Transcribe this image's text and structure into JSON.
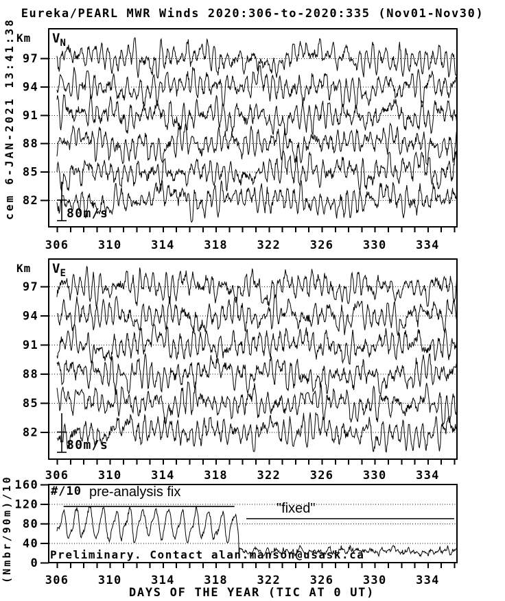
{
  "header": {
    "title": "Eureka/PEARL MWR Winds 2020:306-to-2020:335 (Nov01-Nov30)",
    "left_stamp": "cem 6-JAN-2021 13:41:38"
  },
  "x_axis_title": "DAYS OF THE YEAR (TIC AT 0 UT)",
  "chart_data": [
    {
      "type": "line",
      "id": "vn",
      "label_main": "V",
      "label_sub": "N",
      "ylabel": "Km",
      "altitudes_km": [
        97,
        94,
        91,
        88,
        85,
        82
      ],
      "x_ticks": [
        306,
        310,
        314,
        318,
        322,
        326,
        330,
        334
      ],
      "x_minor_step_days": 1,
      "x_range_days": [
        305.4,
        336.25
      ],
      "data_span_days": [
        306.0,
        336.2
      ],
      "grid": "dotted-horizontal-per-altitude",
      "scale_bar": {
        "label": "80m/s",
        "mps": 80
      },
      "series_model": {
        "synthetic": true,
        "note": "dense noisy hourly wind traces, one per altitude, oscillating about each altitude baseline",
        "samples_per_day": 24,
        "seed": 101,
        "mean_wind_mps": 0,
        "semidiurnal_amp_mps": 16,
        "semidiurnal_amp_variability_mps": 9,
        "diurnal_amp_mps": 7,
        "slow_drift_mps": 9,
        "fast_noise_mps": 8,
        "typical_peak_mps": 45
      }
    },
    {
      "type": "line",
      "id": "ve",
      "label_main": "V",
      "label_sub": "E",
      "ylabel": "Km",
      "altitudes_km": [
        97,
        94,
        91,
        88,
        85,
        82
      ],
      "x_ticks": [
        306,
        310,
        314,
        318,
        322,
        326,
        330,
        334
      ],
      "x_minor_step_days": 1,
      "x_range_days": [
        305.4,
        336.25
      ],
      "data_span_days": [
        306.0,
        336.2
      ],
      "grid": "dotted-horizontal-per-altitude",
      "scale_bar": {
        "label": "80m/s",
        "mps": 80
      },
      "series_model": {
        "synthetic": true,
        "note": "dense noisy hourly wind traces, one per altitude, oscillating about each altitude baseline",
        "samples_per_day": 24,
        "seed": 202,
        "mean_wind_mps": 0,
        "semidiurnal_amp_mps": 16,
        "semidiurnal_amp_variability_mps": 9,
        "diurnal_amp_mps": 7,
        "slow_drift_mps": 9,
        "fast_noise_mps": 8,
        "typical_peak_mps": 45
      }
    },
    {
      "type": "line",
      "id": "meteor-count",
      "ylabel": "(Nmbr/90m)/10",
      "y_ticks": [
        160,
        120,
        80,
        40,
        0
      ],
      "y_gridlines": [
        120,
        80,
        40
      ],
      "ylim": [
        0,
        160
      ],
      "x_ticks": [
        306,
        310,
        314,
        318,
        322,
        326,
        330,
        334
      ],
      "x_minor_step_days": 1,
      "panel_label": "#/10",
      "annotation_prefix": "pre-analysis fix",
      "annotation_fixed": "\"fixed\"",
      "annotation_preliminary": "Preliminary. Contact alan.manson@usask.ca",
      "prefix_bar": {
        "days": [
          306.5,
          319.4
        ],
        "value": 115
      },
      "fixed_line": {
        "days": [
          320.3,
          336.0
        ],
        "value": 90
      },
      "series_model": {
        "synthetic": true,
        "samples_per_day": 24,
        "seed": 303,
        "pre_fix": {
          "days": [
            306.0,
            319.7
          ],
          "mean": 77,
          "daily_amp": 27,
          "range": [
            41,
            116
          ]
        },
        "drop": {
          "day": 319.75,
          "value": 11
        },
        "post_fix": {
          "days": [
            319.8,
            336.2
          ],
          "mean": 23,
          "range": [
            13,
            35
          ]
        }
      }
    }
  ]
}
